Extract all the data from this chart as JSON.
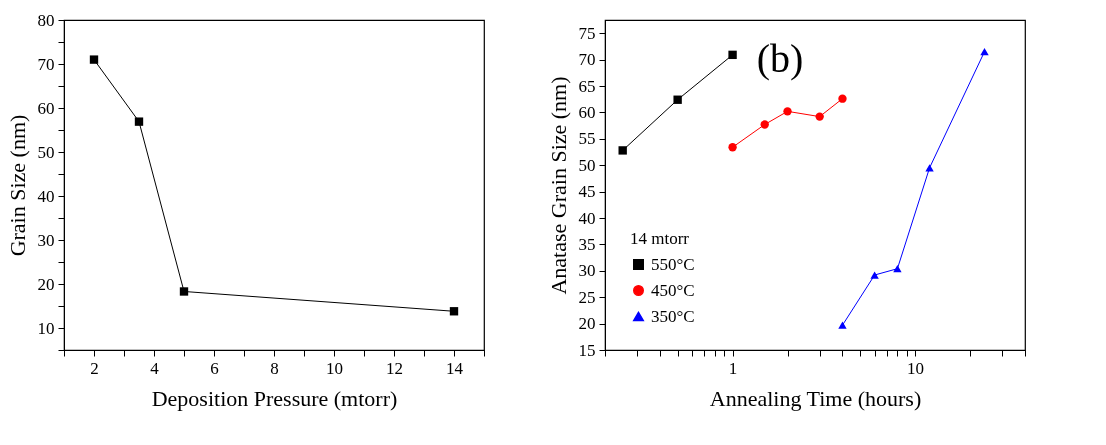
{
  "chart_data": [
    {
      "type": "line",
      "xlabel": "Deposition Pressure (mtorr)",
      "ylabel": "Grain Size (nm)",
      "x": [
        2,
        3.5,
        5,
        14
      ],
      "series": [
        {
          "color": "#000000",
          "marker": "square",
          "values": [
            71,
            56.9,
            18.3,
            13.8
          ]
        }
      ],
      "xlim": [
        1,
        15
      ],
      "xticks": [
        {
          "value": 1,
          "label": null
        },
        2,
        {
          "value": 3,
          "label": null
        },
        4,
        {
          "value": 5,
          "label": null
        },
        6,
        {
          "value": 7,
          "label": null
        },
        8,
        {
          "value": 9,
          "label": null
        },
        10,
        {
          "value": 11,
          "label": null
        },
        12,
        {
          "value": 13,
          "label": null
        },
        14,
        {
          "value": 15,
          "label": null
        }
      ],
      "ylim": [
        5,
        80
      ],
      "yticks": [
        {
          "value": 5,
          "label": null
        },
        10,
        {
          "value": 15,
          "label": null
        },
        20,
        {
          "value": 25,
          "label": null
        },
        30,
        {
          "value": 35,
          "label": null
        },
        40,
        {
          "value": 45,
          "label": null
        },
        50,
        {
          "value": 55,
          "label": null
        },
        60,
        {
          "value": 65,
          "label": null
        },
        70,
        {
          "value": 75,
          "label": null
        },
        80
      ],
      "grid": false,
      "legend": false
    },
    {
      "type": "line",
      "xlabel": "Annealing Time (hours)",
      "ylabel": "Anatase Grain Size (nm)",
      "legend_title": "14 mtorr",
      "annotations": [
        "(b)"
      ],
      "series": [
        {
          "name": "550°C",
          "color": "#000000",
          "marker": "square",
          "x": [
            0.25,
            0.5,
            1
          ],
          "values": [
            52.8,
            62.4,
            70.9
          ]
        },
        {
          "name": "450°C",
          "color": "#ff0000",
          "marker": "circle",
          "x": [
            1,
            1.5,
            2,
            3,
            4
          ],
          "values": [
            53.4,
            57.7,
            60.2,
            59.2,
            62.6
          ]
        },
        {
          "name": "350°C",
          "color": "#0000ff",
          "marker": "triangle",
          "x": [
            4,
            6,
            8,
            12,
            24
          ],
          "values": [
            19.7,
            29.2,
            30.4,
            49.5,
            71.5
          ]
        }
      ],
      "log": "x",
      "xlim": [
        0.2,
        40
      ],
      "xticks": [
        {
          "value": 0.2,
          "label": null
        },
        {
          "value": 0.3,
          "label": null
        },
        {
          "value": 0.4,
          "label": null
        },
        {
          "value": 0.5,
          "label": null
        },
        {
          "value": 0.6,
          "label": null
        },
        {
          "value": 0.7,
          "label": null
        },
        {
          "value": 0.8,
          "label": null
        },
        {
          "value": 0.9,
          "label": null
        },
        1,
        {
          "value": 2,
          "label": null
        },
        {
          "value": 3,
          "label": null
        },
        {
          "value": 4,
          "label": null
        },
        {
          "value": 5,
          "label": null
        },
        {
          "value": 6,
          "label": null
        },
        {
          "value": 7,
          "label": null
        },
        {
          "value": 8,
          "label": null
        },
        {
          "value": 9,
          "label": null
        },
        10,
        {
          "value": 20,
          "label": null
        },
        {
          "value": 30,
          "label": null
        },
        {
          "value": 40,
          "label": null
        }
      ],
      "ylim": [
        15,
        77.5
      ],
      "yticks": [
        15,
        20,
        25,
        30,
        35,
        40,
        45,
        50,
        55,
        60,
        65,
        70,
        75
      ],
      "grid": false,
      "legend": "bottom left"
    }
  ]
}
